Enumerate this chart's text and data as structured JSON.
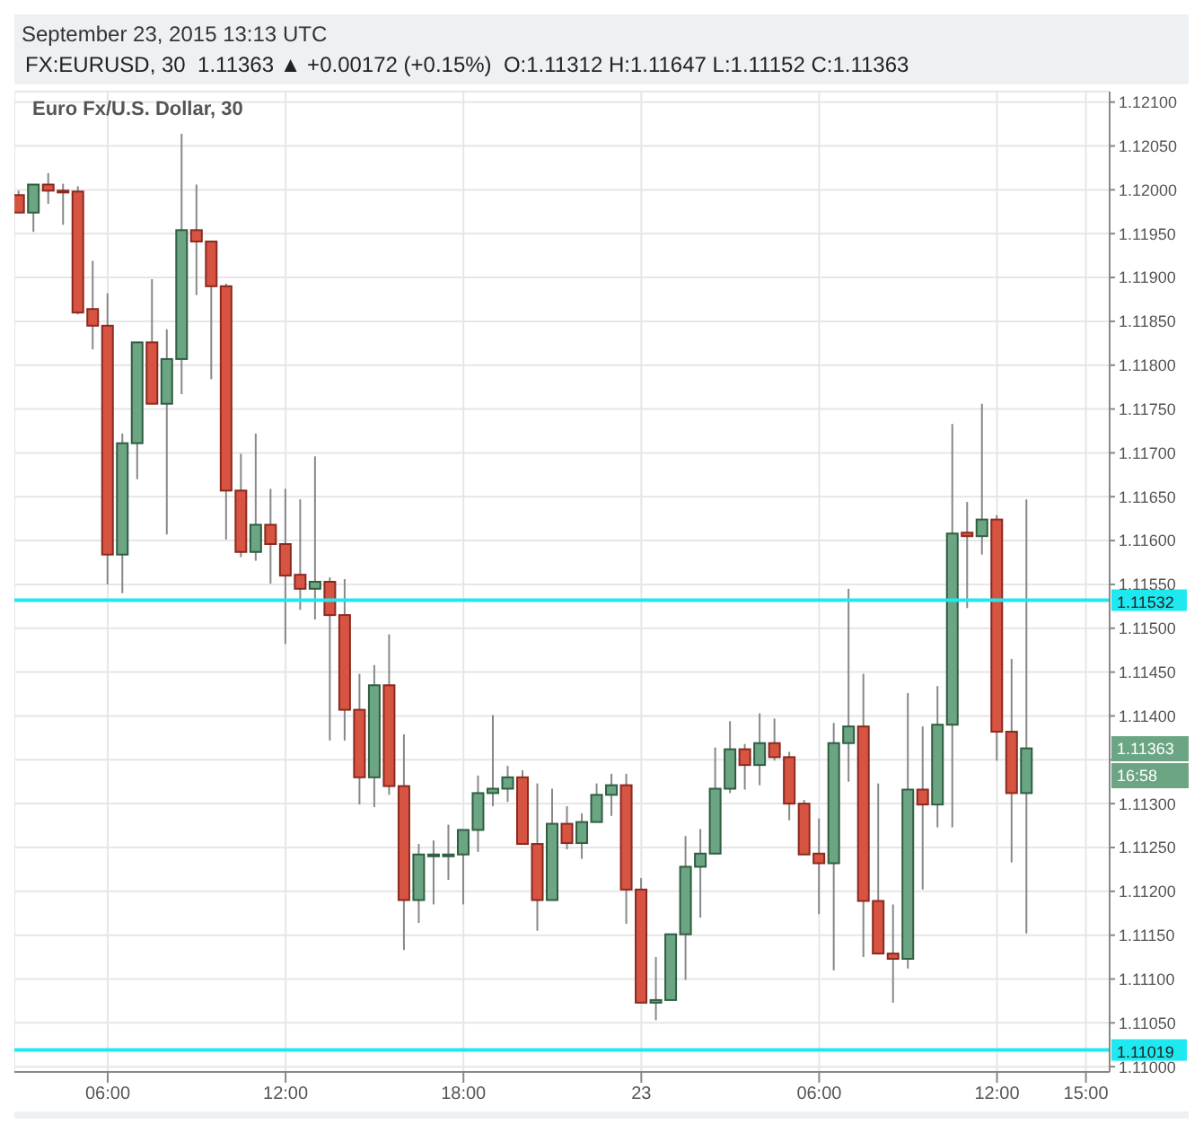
{
  "chart_data": {
    "type": "candlestick",
    "title": "Euro Fx/U.S. Dollar, 30",
    "subtitle": "FX:EURUSD, 30  1.11363 ▲ +0.00172 (+0.15%)  O:1.11312 H:1.11647 L:1.11152 C:1.11363",
    "annotations": [
      "September 23, 2015 13:13 UTC",
      "1.11363",
      "16:58"
    ],
    "x": [
      "2015-09-22T03:00",
      "2015-09-22T03:30",
      "2015-09-22T04:00",
      "2015-09-22T04:30",
      "2015-09-22T05:00",
      "2015-09-22T05:30",
      "2015-09-22T06:00",
      "2015-09-22T06:30",
      "2015-09-22T07:00",
      "2015-09-22T07:30",
      "2015-09-22T08:00",
      "2015-09-22T08:30",
      "2015-09-22T09:00",
      "2015-09-22T09:30",
      "2015-09-22T10:00",
      "2015-09-22T10:30",
      "2015-09-22T11:00",
      "2015-09-22T11:30",
      "2015-09-22T12:00",
      "2015-09-22T12:30",
      "2015-09-22T13:00",
      "2015-09-22T13:30",
      "2015-09-22T14:00",
      "2015-09-22T14:30",
      "2015-09-22T15:00",
      "2015-09-22T15:30",
      "2015-09-22T16:00",
      "2015-09-22T16:30",
      "2015-09-22T17:00",
      "2015-09-22T17:30",
      "2015-09-22T18:00",
      "2015-09-22T18:30",
      "2015-09-22T19:00",
      "2015-09-22T19:30",
      "2015-09-22T20:00",
      "2015-09-22T20:30",
      "2015-09-22T21:00",
      "2015-09-22T21:30",
      "2015-09-22T22:00",
      "2015-09-22T22:30",
      "2015-09-22T23:00",
      "2015-09-22T23:30",
      "2015-09-23T00:00",
      "2015-09-23T00:30",
      "2015-09-23T01:00",
      "2015-09-23T01:30",
      "2015-09-23T02:00",
      "2015-09-23T02:30",
      "2015-09-23T03:00",
      "2015-09-23T03:30",
      "2015-09-23T04:00",
      "2015-09-23T04:30",
      "2015-09-23T05:00",
      "2015-09-23T05:30",
      "2015-09-23T06:00",
      "2015-09-23T06:30",
      "2015-09-23T07:00",
      "2015-09-23T07:30",
      "2015-09-23T08:00",
      "2015-09-23T08:30",
      "2015-09-23T09:00",
      "2015-09-23T09:30",
      "2015-09-23T10:00",
      "2015-09-23T10:30",
      "2015-09-23T11:00",
      "2015-09-23T11:30",
      "2015-09-23T12:00",
      "2015-09-23T12:30",
      "2015-09-23T13:00"
    ],
    "ohlc": [
      [
        1.11994,
        1.11999,
        1.11974,
        1.11974
      ],
      [
        1.11974,
        1.12006,
        1.11952,
        1.12006
      ],
      [
        1.12006,
        1.12019,
        1.11984,
        1.11999
      ],
      [
        1.11999,
        1.12007,
        1.1196,
        1.11998
      ],
      [
        1.11998,
        1.12004,
        1.11858,
        1.1186
      ],
      [
        1.11864,
        1.11919,
        1.11818,
        1.11845
      ],
      [
        1.11845,
        1.11882,
        1.1155,
        1.11584
      ],
      [
        1.11584,
        1.11722,
        1.1154,
        1.11711
      ],
      [
        1.11711,
        1.11826,
        1.1167,
        1.11826
      ],
      [
        1.11826,
        1.11898,
        1.11756,
        1.11756
      ],
      [
        1.11756,
        1.11841,
        1.11607,
        1.11807
      ],
      [
        1.11807,
        1.12064,
        1.11767,
        1.11954
      ],
      [
        1.11954,
        1.12006,
        1.1188,
        1.11941
      ],
      [
        1.11941,
        1.11941,
        1.11784,
        1.1189
      ],
      [
        1.1189,
        1.11893,
        1.11601,
        1.11657
      ],
      [
        1.11657,
        1.11699,
        1.11581,
        1.11587
      ],
      [
        1.11587,
        1.11722,
        1.11577,
        1.11618
      ],
      [
        1.11618,
        1.11659,
        1.11551,
        1.11596
      ],
      [
        1.11596,
        1.11659,
        1.11482,
        1.1156
      ],
      [
        1.11561,
        1.11647,
        1.11521,
        1.11545
      ],
      [
        1.11545,
        1.11696,
        1.1151,
        1.11553
      ],
      [
        1.11553,
        1.11558,
        1.11372,
        1.11515
      ],
      [
        1.11515,
        1.11556,
        1.11372,
        1.11407
      ],
      [
        1.11407,
        1.11448,
        1.11299,
        1.1133
      ],
      [
        1.1133,
        1.11458,
        1.11296,
        1.11435
      ],
      [
        1.11435,
        1.11493,
        1.1131,
        1.1132
      ],
      [
        1.1132,
        1.11379,
        1.11133,
        1.1119
      ],
      [
        1.1119,
        1.11254,
        1.11164,
        1.11242
      ],
      [
        1.11242,
        1.11258,
        1.11185,
        1.11242
      ],
      [
        1.11242,
        1.11276,
        1.11213,
        1.11242
      ],
      [
        1.11242,
        1.1127,
        1.11185,
        1.1127
      ],
      [
        1.1127,
        1.11332,
        1.11245,
        1.11312
      ],
      [
        1.11312,
        1.11401,
        1.11297,
        1.11317
      ],
      [
        1.11317,
        1.11343,
        1.11302,
        1.1133
      ],
      [
        1.1133,
        1.11338,
        1.11254,
        1.11254
      ],
      [
        1.11254,
        1.11323,
        1.11155,
        1.1119
      ],
      [
        1.1119,
        1.11317,
        1.1119,
        1.11277
      ],
      [
        1.11277,
        1.11297,
        1.11248,
        1.11255
      ],
      [
        1.11255,
        1.11289,
        1.11237,
        1.11279
      ],
      [
        1.11279,
        1.11323,
        1.11279,
        1.1131
      ],
      [
        1.1131,
        1.11334,
        1.11286,
        1.11321
      ],
      [
        1.11321,
        1.11334,
        1.11163,
        1.11202
      ],
      [
        1.11202,
        1.11215,
        1.11073,
        1.11073
      ],
      [
        1.11073,
        1.11125,
        1.11053,
        1.11076
      ],
      [
        1.11076,
        1.11151,
        1.11076,
        1.11151
      ],
      [
        1.11151,
        1.11263,
        1.11099,
        1.11228
      ],
      [
        1.11228,
        1.11271,
        1.1117,
        1.11243
      ],
      [
        1.11243,
        1.11364,
        1.11243,
        1.11317
      ],
      [
        1.11317,
        1.11394,
        1.11312,
        1.11362
      ],
      [
        1.11362,
        1.11368,
        1.11316,
        1.11344
      ],
      [
        1.11344,
        1.11403,
        1.11321,
        1.11369
      ],
      [
        1.11369,
        1.11397,
        1.11349,
        1.11353
      ],
      [
        1.11353,
        1.11359,
        1.11281,
        1.113
      ],
      [
        1.113,
        1.11304,
        1.11242,
        1.11242
      ],
      [
        1.11243,
        1.11283,
        1.11174,
        1.11232
      ],
      [
        1.11232,
        1.11392,
        1.1111,
        1.11369
      ],
      [
        1.11369,
        1.11545,
        1.11325,
        1.11388
      ],
      [
        1.11388,
        1.11448,
        1.11125,
        1.11189
      ],
      [
        1.11189,
        1.11323,
        1.11129,
        1.11129
      ],
      [
        1.11129,
        1.11185,
        1.11073,
        1.11123
      ],
      [
        1.11123,
        1.11426,
        1.11112,
        1.11316
      ],
      [
        1.11316,
        1.11388,
        1.11202,
        1.11299
      ],
      [
        1.11299,
        1.11434,
        1.11273,
        1.1139
      ],
      [
        1.1139,
        1.11733,
        1.11273,
        1.11608
      ],
      [
        1.11609,
        1.11644,
        1.11523,
        1.11605
      ],
      [
        1.11605,
        1.11756,
        1.11584,
        1.11624
      ],
      [
        1.11624,
        1.11629,
        1.11349,
        1.11382
      ],
      [
        1.11382,
        1.11465,
        1.11233,
        1.11312
      ],
      [
        1.11312,
        1.11647,
        1.11152,
        1.11363
      ]
    ],
    "colors": [
      "#d75442",
      "#6ba583",
      "#d75442",
      "#d75442",
      "#d75442",
      "#d75442",
      "#d75442",
      "#6ba583",
      "#6ba583",
      "#d75442",
      "#6ba583",
      "#6ba583",
      "#d75442",
      "#d75442",
      "#d75442",
      "#d75442",
      "#6ba583",
      "#d75442",
      "#d75442",
      "#d75442",
      "#6ba583",
      "#d75442",
      "#d75442",
      "#d75442",
      "#6ba583",
      "#d75442",
      "#d75442",
      "#6ba583",
      "#6ba583",
      "#6ba583",
      "#6ba583",
      "#6ba583",
      "#6ba583",
      "#6ba583",
      "#d75442",
      "#d75442",
      "#6ba583",
      "#d75442",
      "#6ba583",
      "#6ba583",
      "#6ba583",
      "#d75442",
      "#d75442",
      "#6ba583",
      "#6ba583",
      "#6ba583",
      "#6ba583",
      "#6ba583",
      "#6ba583",
      "#d75442",
      "#6ba583",
      "#d75442",
      "#d75442",
      "#d75442",
      "#d75442",
      "#6ba583",
      "#6ba583",
      "#d75442",
      "#d75442",
      "#d75442",
      "#6ba583",
      "#d75442",
      "#6ba583",
      "#6ba583",
      "#d75442",
      "#6ba583",
      "#d75442",
      "#d75442",
      "#6ba583"
    ],
    "xlim": [
      "2015-09-22T02:51",
      "2015-09-23T15:48"
    ],
    "xticks": [
      {
        "value": "2015-09-22T06:00",
        "label": "06:00"
      },
      {
        "value": "2015-09-22T12:00",
        "label": "12:00"
      },
      {
        "value": "2015-09-22T18:00",
        "label": "18:00"
      },
      {
        "value": "2015-09-23T00:00",
        "label": "23"
      },
      {
        "value": "2015-09-23T06:00",
        "label": "06:00"
      },
      {
        "value": "2015-09-23T12:00",
        "label": "12:00"
      },
      {
        "value": "2015-09-23T15:00",
        "label": "15:00"
      }
    ],
    "ylim": [
      1.10994,
      1.12112
    ],
    "yticks": [
      {
        "value": 1.11,
        "label": "1.11000"
      },
      {
        "value": 1.1105,
        "label": "1.11050"
      },
      {
        "value": 1.111,
        "label": "1.11100"
      },
      {
        "value": 1.1115,
        "label": "1.11150"
      },
      {
        "value": 1.112,
        "label": "1.11200"
      },
      {
        "value": 1.1125,
        "label": "1.11250"
      },
      {
        "value": 1.113,
        "label": "1.11300"
      },
      {
        "value": 1.1135,
        "label": null
      },
      {
        "value": 1.114,
        "label": "1.11400"
      },
      {
        "value": 1.1145,
        "label": "1.11450"
      },
      {
        "value": 1.115,
        "label": "1.11500"
      },
      {
        "value": 1.1155,
        "label": "1.11550"
      },
      {
        "value": 1.116,
        "label": "1.11600"
      },
      {
        "value": 1.1165,
        "label": "1.11650"
      },
      {
        "value": 1.117,
        "label": "1.11700"
      },
      {
        "value": 1.1175,
        "label": "1.11750"
      },
      {
        "value": 1.118,
        "label": "1.11800"
      },
      {
        "value": 1.1185,
        "label": "1.11850"
      },
      {
        "value": 1.119,
        "label": "1.11900"
      },
      {
        "value": 1.1195,
        "label": "1.11950"
      },
      {
        "value": 1.12,
        "label": "1.12000"
      },
      {
        "value": 1.1205,
        "label": "1.12050"
      },
      {
        "value": 1.121,
        "label": "1.12100"
      }
    ],
    "ref_lines": [
      {
        "axis": "y",
        "value": 1.11532,
        "label": "1.11532",
        "color": "#1ee8f0"
      },
      {
        "axis": "y",
        "value": 1.11019,
        "label": "1.11019",
        "color": "#1ee8f0"
      }
    ],
    "grid": true
  }
}
